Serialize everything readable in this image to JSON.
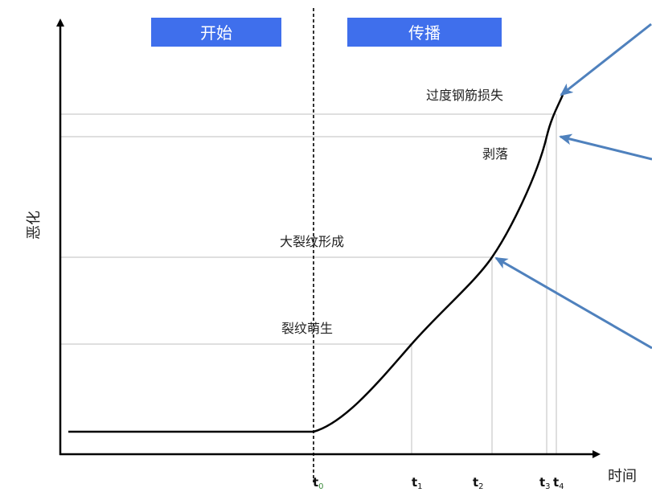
{
  "phases": [
    {
      "label": "开始"
    },
    {
      "label": "传播"
    }
  ],
  "axes": {
    "y_label": "恶化",
    "x_label": "时间"
  },
  "annotations": {
    "excessive_steel_loss": "过度钢筋损失",
    "spalling": "剥落",
    "large_crack_formation": "大裂纹形成",
    "crack_initiation": "裂纹萌生"
  },
  "ticks": [
    {
      "base": "t",
      "sub": "0"
    },
    {
      "base": "t",
      "sub": "1"
    },
    {
      "base": "t",
      "sub": "2"
    },
    {
      "base": "t",
      "sub": "3"
    },
    {
      "base": "t",
      "sub": "4"
    }
  ],
  "colors": {
    "phase_box": "#3F6FEC",
    "phase_text": "#FFFFFF",
    "arrow": "#4F81BD",
    "curve": "#000000",
    "guide": "#BFBFBF",
    "t0_sub": "#3A8A3A"
  }
}
